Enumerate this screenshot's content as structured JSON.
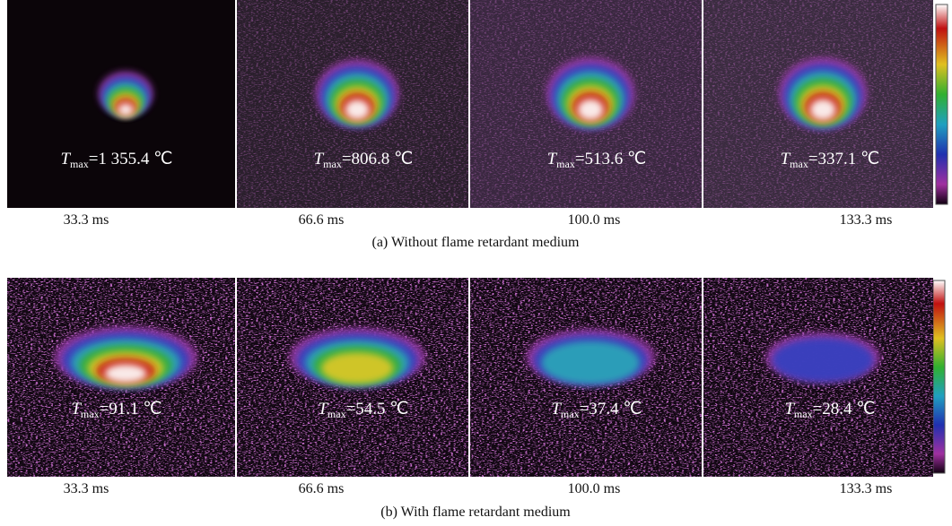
{
  "figure": {
    "rows": [
      {
        "caption": "(a) Without flame retardant medium",
        "panels": [
          {
            "time": "33.3 ms",
            "label": {
              "symbol": "T",
              "subscript": "max",
              "value": "=1 355.4 ℃"
            }
          },
          {
            "time": "66.6 ms",
            "label": {
              "symbol": "T",
              "subscript": "max",
              "value": "=806.8 ℃"
            }
          },
          {
            "time": "100.0 ms",
            "label": {
              "symbol": "T",
              "subscript": "max",
              "value": "=513.6 ℃"
            }
          },
          {
            "time": "133.3 ms",
            "label": {
              "symbol": "T",
              "subscript": "max",
              "value": "=337.1 ℃"
            }
          }
        ]
      },
      {
        "caption": "(b) With flame retardant medium",
        "panels": [
          {
            "time": "33.3 ms",
            "label": {
              "symbol": "T",
              "subscript": "max",
              "value": "=91.1 ℃"
            }
          },
          {
            "time": "66.6 ms",
            "label": {
              "symbol": "T",
              "subscript": "max",
              "value": "=54.5 ℃"
            }
          },
          {
            "time": "100.0 ms",
            "label": {
              "symbol": "T",
              "subscript": "max",
              "value": "=37.4 ℃"
            }
          },
          {
            "time": "133.3 ms",
            "label": {
              "symbol": "T",
              "subscript": "max",
              "value": "=28.4 ℃"
            }
          }
        ]
      }
    ]
  }
}
